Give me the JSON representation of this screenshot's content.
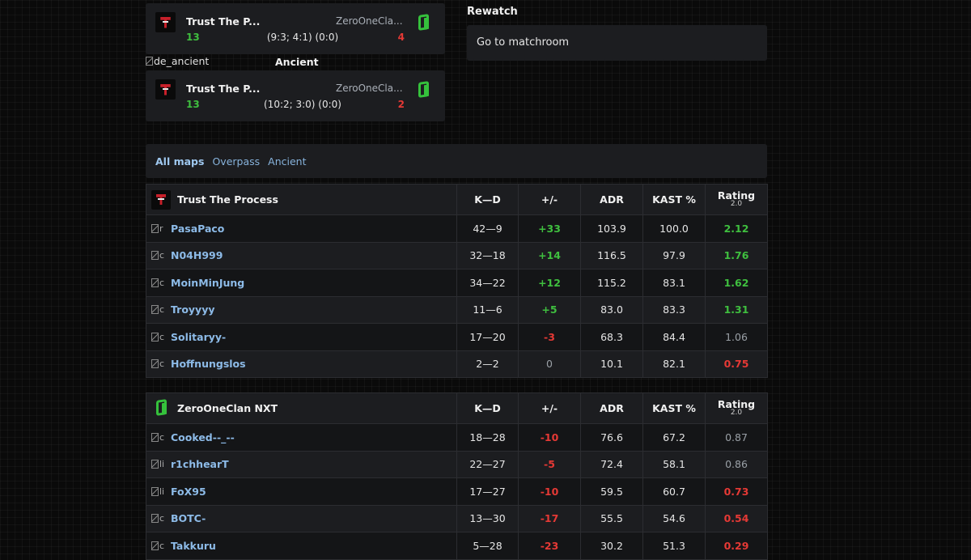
{
  "map_results": [
    {
      "team1": "Trust The P...",
      "team2": "ZeroOneCla...",
      "score1": "13",
      "score2": "4",
      "detail": "(9:3; 4:1) (0:0)"
    },
    {
      "team1": "Trust The P...",
      "team2": "ZeroOneCla...",
      "score1": "13",
      "score2": "2",
      "detail": "(10:2; 3:0) (0:0)"
    }
  ],
  "map_image_alt": "de_ancient",
  "map_name": "Ancient",
  "rewatch": {
    "title": "Rewatch",
    "matchroom_label": "Go to matchroom"
  },
  "map_tabs": [
    "All maps",
    "Overpass",
    "Ancient"
  ],
  "columns": {
    "kd": "K—D",
    "plusminus": "+/-",
    "adr": "ADR",
    "kast": "KAST %",
    "rating": "Rating",
    "rating_version": "2.0"
  },
  "teams": [
    {
      "name": "Trust The Process",
      "players": [
        {
          "img_alt": "r",
          "name": "PasaPaco",
          "kd": "42—9",
          "pm": "+33",
          "pm_class": "pos",
          "adr": "103.9",
          "kast": "100.0",
          "rating": "2.12",
          "rating_class": "pos"
        },
        {
          "img_alt": "c",
          "name": "N04H999",
          "kd": "32—18",
          "pm": "+14",
          "pm_class": "pos",
          "adr": "116.5",
          "kast": "97.9",
          "rating": "1.76",
          "rating_class": "pos"
        },
        {
          "img_alt": "c",
          "name": "MoinMinJung",
          "kd": "34—22",
          "pm": "+12",
          "pm_class": "pos",
          "adr": "115.2",
          "kast": "83.1",
          "rating": "1.62",
          "rating_class": "pos"
        },
        {
          "img_alt": "c",
          "name": "Troyyyy",
          "kd": "11—6",
          "pm": "+5",
          "pm_class": "pos",
          "adr": "83.0",
          "kast": "83.3",
          "rating": "1.31",
          "rating_class": "pos"
        },
        {
          "img_alt": "c",
          "name": "Solitaryy-",
          "kd": "17—20",
          "pm": "-3",
          "pm_class": "neg",
          "adr": "68.3",
          "kast": "84.4",
          "rating": "1.06",
          "rating_class": "neu"
        },
        {
          "img_alt": "c",
          "name": "Hoffnungslos",
          "kd": "2—2",
          "pm": "0",
          "pm_class": "neu",
          "adr": "10.1",
          "kast": "82.1",
          "rating": "0.75",
          "rating_class": "neg"
        }
      ]
    },
    {
      "name": "ZeroOneClan NXT",
      "players": [
        {
          "img_alt": "c",
          "name": "Cooked--_--",
          "kd": "18—28",
          "pm": "-10",
          "pm_class": "neg",
          "adr": "76.6",
          "kast": "67.2",
          "rating": "0.87",
          "rating_class": "neu"
        },
        {
          "img_alt": "li",
          "name": "r1chhearT",
          "kd": "22—27",
          "pm": "-5",
          "pm_class": "neg",
          "adr": "72.4",
          "kast": "58.1",
          "rating": "0.86",
          "rating_class": "neu"
        },
        {
          "img_alt": "li",
          "name": "FoX95",
          "kd": "17—27",
          "pm": "-10",
          "pm_class": "neg",
          "adr": "59.5",
          "kast": "60.7",
          "rating": "0.73",
          "rating_class": "neg"
        },
        {
          "img_alt": "c",
          "name": "BOTC-",
          "kd": "13—30",
          "pm": "-17",
          "pm_class": "neg",
          "adr": "55.5",
          "kast": "54.6",
          "rating": "0.54",
          "rating_class": "neg"
        },
        {
          "img_alt": "c",
          "name": "Takkuru",
          "kd": "5—28",
          "pm": "-23",
          "pm_class": "neg",
          "adr": "30.2",
          "kast": "51.3",
          "rating": "0.29",
          "rating_class": "neg"
        }
      ]
    }
  ],
  "colors": {
    "positive": "#3fbf3f",
    "negative": "#e53935",
    "neutral": "#9aa0a6",
    "link": "#8dbbe8"
  }
}
